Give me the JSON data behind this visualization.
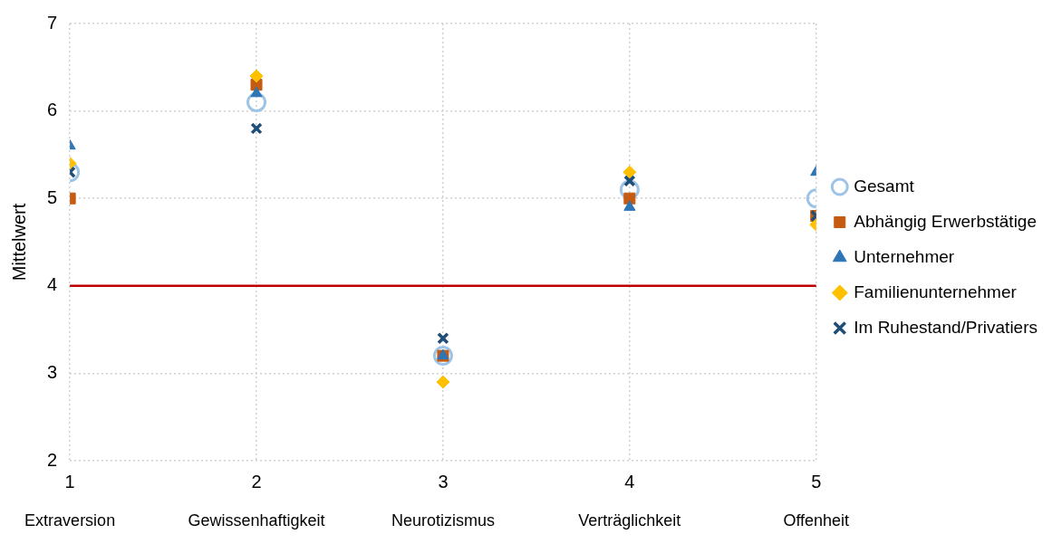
{
  "chart_data": {
    "type": "scatter",
    "ylabel": "Mittelwert",
    "x": [
      1,
      2,
      3,
      4,
      5
    ],
    "xlim": [
      1,
      5
    ],
    "xticks": [
      1,
      2,
      3,
      4,
      5
    ],
    "ylim": [
      2,
      7
    ],
    "yticks": [
      2,
      3,
      4,
      5,
      6,
      7
    ],
    "grid": true,
    "legend": "right",
    "series": [
      {
        "name": "Gesamt",
        "color": "#9dc3e6",
        "marker": "circle",
        "values": [
          5.3,
          6.1,
          3.2,
          5.1,
          5.0
        ]
      },
      {
        "name": "Abhängig Erwerbstätige",
        "color": "#c55a11",
        "marker": "square",
        "values": [
          5.0,
          6.3,
          3.2,
          5.0,
          4.8
        ]
      },
      {
        "name": "Unternehmer",
        "color": "#2e75b6",
        "marker": "triangle",
        "values": [
          5.6,
          6.2,
          3.2,
          4.9,
          5.3
        ]
      },
      {
        "name": "Familienunternehmer",
        "color": "#ffc000",
        "marker": "diamond",
        "values": [
          5.4,
          6.4,
          2.9,
          5.3,
          4.7
        ]
      },
      {
        "name": "Im Ruhestand/Privatiers",
        "color": "#1f4e79",
        "marker": "cross",
        "values": [
          5.3,
          5.8,
          3.4,
          5.2,
          4.8
        ]
      }
    ],
    "ref_lines": [
      {
        "axis": "y",
        "value": 4,
        "color": "#c00000",
        "line_style": "solid"
      }
    ],
    "annotations": [
      "Extraversion",
      "Gewissenhaftigkeit",
      "Neurotizismus",
      "Verträglichkeit",
      "Offenheit"
    ]
  }
}
